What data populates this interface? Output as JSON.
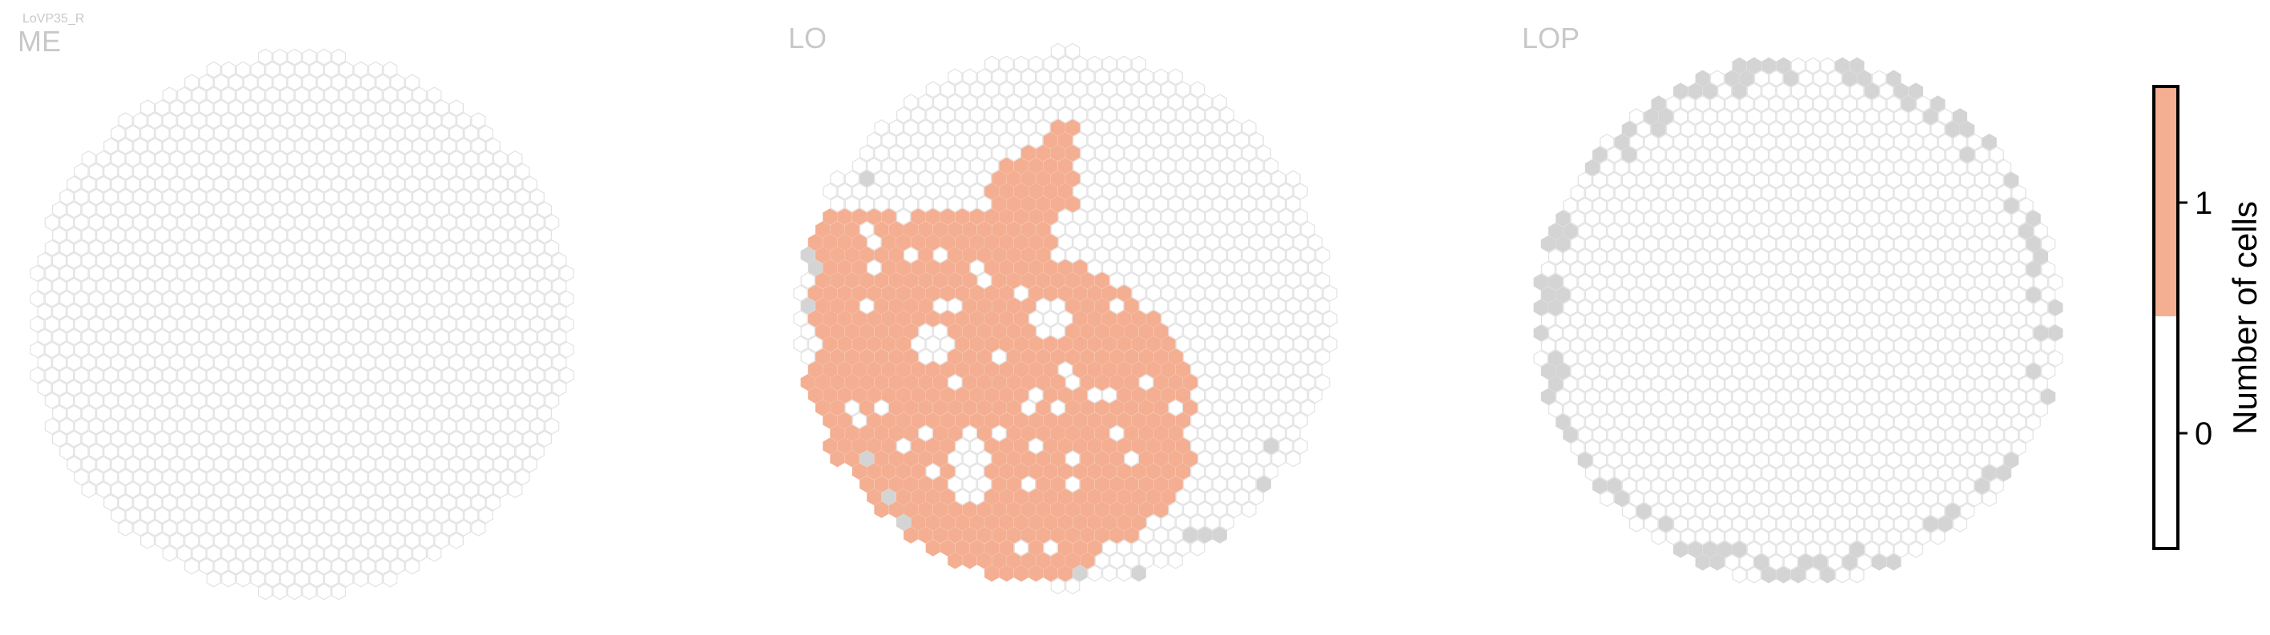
{
  "chart_data": {
    "type": "heatmap",
    "cell_type_label": "LoVP35_R",
    "colorbar": {
      "label": "Number of cells",
      "ticks": [
        0,
        1
      ],
      "range": [
        0,
        1
      ],
      "colors": {
        "0": "#ffffff",
        "1": "#f4ae91"
      }
    },
    "colors": {
      "hex_outline": "#e2e2e2",
      "filled": "#f4ae91",
      "boundary": "#d4d4d4",
      "region_label": "#c8c8c8"
    },
    "panels": [
      {
        "region": "ME",
        "filled_count": 0,
        "filled_region": null,
        "boundary_columns": "none"
      },
      {
        "region": "LO",
        "filled_count": 1,
        "filled_region": "lower-left quadrant, sparse at upper edge",
        "boundary_columns": "scattered along lower and left rim"
      },
      {
        "region": "LOP",
        "filled_count": 0,
        "filled_region": null,
        "boundary_columns": "ring along the circular rim"
      }
    ]
  }
}
